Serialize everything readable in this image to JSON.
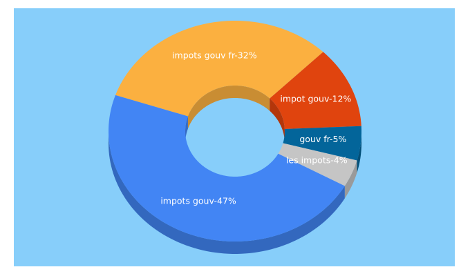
{
  "chart_data": {
    "type": "donut3d",
    "values": [
      32,
      12,
      5,
      4,
      47
    ],
    "value_labels": [
      "impots gouv fr-32%",
      "impot gouv-12%",
      "gouv fr-5%",
      "les impots-4%",
      "impots gouv-47%"
    ],
    "colors": [
      "#fbb040",
      "#e0440e",
      "#03659a",
      "#c5c5c5",
      "#4285f4"
    ]
  }
}
